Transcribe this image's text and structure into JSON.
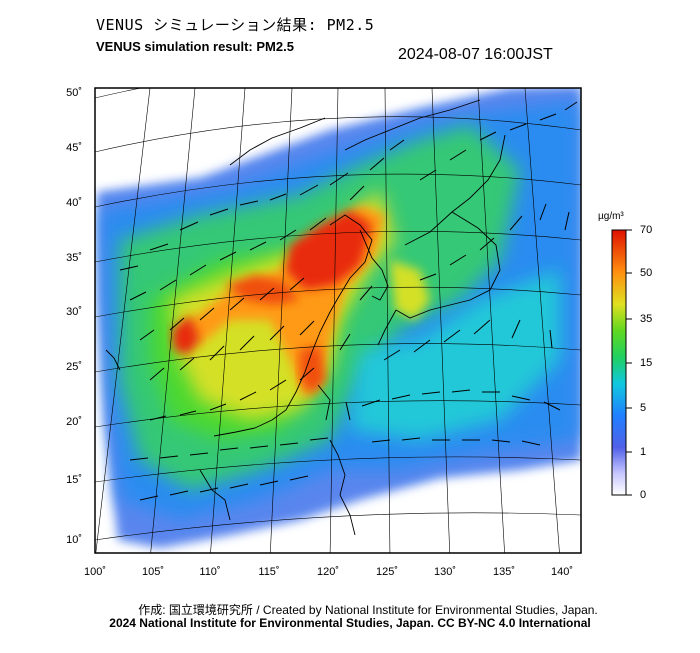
{
  "header": {
    "title_ja": "VENUS シミュレーション結果: PM2.5",
    "title_en": "VENUS simulation result: PM2.5",
    "timestamp": "2024-08-07 16:00JST"
  },
  "map": {
    "lat_labels": [
      "50˚",
      "45˚",
      "40˚",
      "35˚",
      "30˚",
      "25˚",
      "20˚",
      "15˚",
      "10˚"
    ],
    "lon_labels": [
      "100˚",
      "105˚",
      "110˚",
      "115˚",
      "120˚",
      "125˚",
      "130˚",
      "135˚",
      "140˚"
    ],
    "variable": "PM2.5",
    "lat_range": [
      10,
      50
    ],
    "lon_range": [
      100,
      140
    ]
  },
  "colorbar": {
    "unit": "µg/m³",
    "labels": [
      "70",
      "50",
      "35",
      "15",
      "5",
      "1",
      "0"
    ],
    "colors": [
      "#e8e8ff",
      "#4060e0",
      "#1aa0ff",
      "#30d060",
      "#d8e030",
      "#ffa020",
      "#e82010"
    ]
  },
  "footer": {
    "credit_line": "作成: 国立環境研究所 / Created by National Institute for Environmental Studies, Japan.",
    "license_line": "2024 National Institute for Environmental Studies, Japan. CC BY-NC 4.0 International"
  }
}
